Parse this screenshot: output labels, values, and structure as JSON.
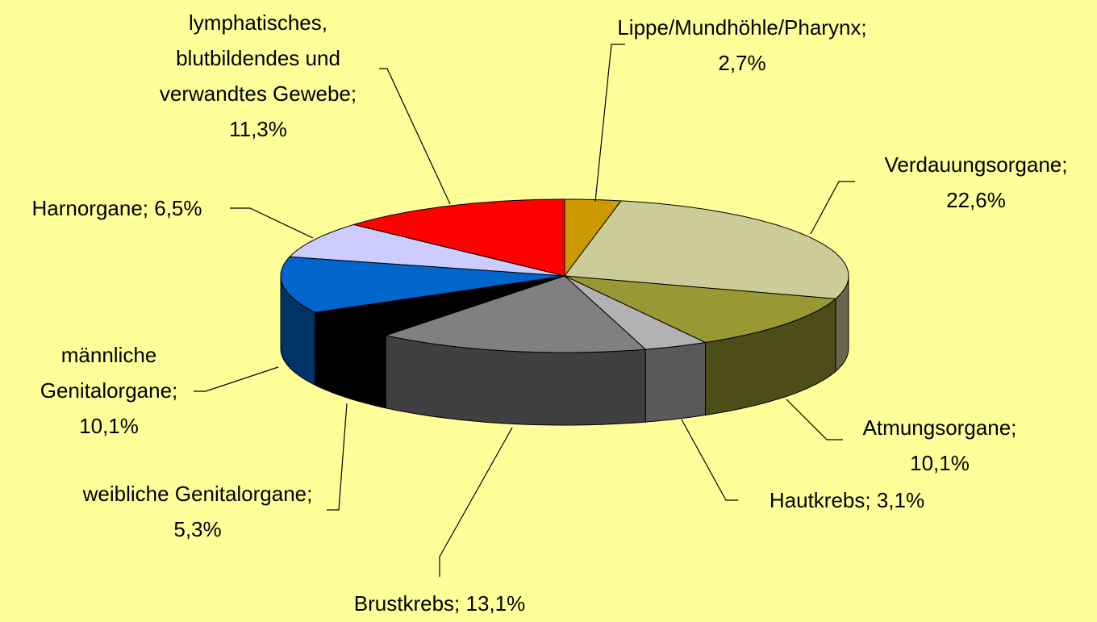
{
  "chart_data": {
    "type": "pie3d",
    "values": [
      2.7,
      22.6,
      10.1,
      3.1,
      13.1,
      5.3,
      10.1,
      6.5,
      11.3
    ],
    "value_labels": [
      "Lippe/Mundhöhle/Pharynx; 2,7%",
      "Verdauungsorgane; 22,6%",
      "Atmungsorgane; 10,1%",
      "Hautkrebs; 3,1%",
      "Brustkrebs; 13,1%",
      "weibliche Genitalorgane; 5,3%",
      "männliche Genitalorgane; 10,1%",
      "Harnorgane; 6,5%",
      "lymphatisches, blutbildendes und verwandtes Gewebe; 11,3%"
    ],
    "colors": [
      "#cc9900",
      "#cccc99",
      "#999933",
      "#b2b2b2",
      "#808080",
      "#000000",
      "#0066cc",
      "#ccccff",
      "#ff0000"
    ]
  }
}
